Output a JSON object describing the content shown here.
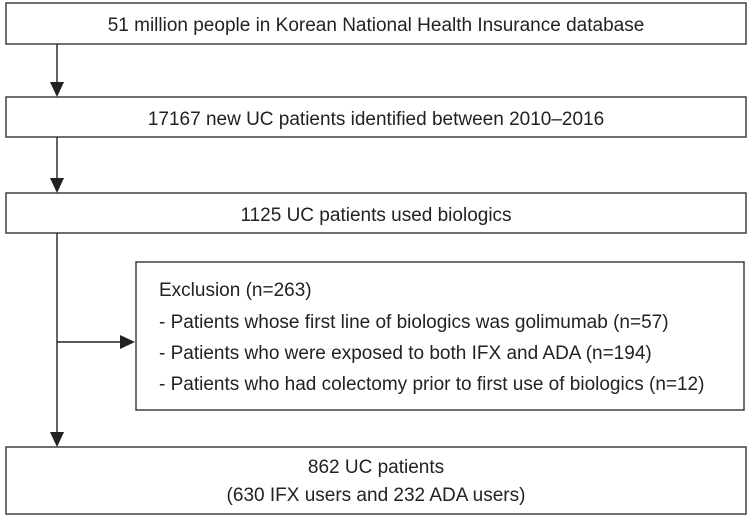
{
  "boxes": {
    "database": "51 million people in Korean National Health Insurance database",
    "new_uc": "17167 new UC patients identified between 2010–2016",
    "biologics": "1125 UC patients used biologics",
    "exclusion": {
      "title": "Exclusion (n=263)",
      "items": [
        "- Patients whose first line of biologics was golimumab (n=57)",
        "- Patients who were exposed to both IFX and ADA (n=194)",
        "- Patients who had colectomy prior to first use of biologics (n=12)"
      ]
    },
    "final": {
      "line1": "862 UC patients",
      "line2": "(630 IFX users and 232 ADA users)"
    }
  }
}
